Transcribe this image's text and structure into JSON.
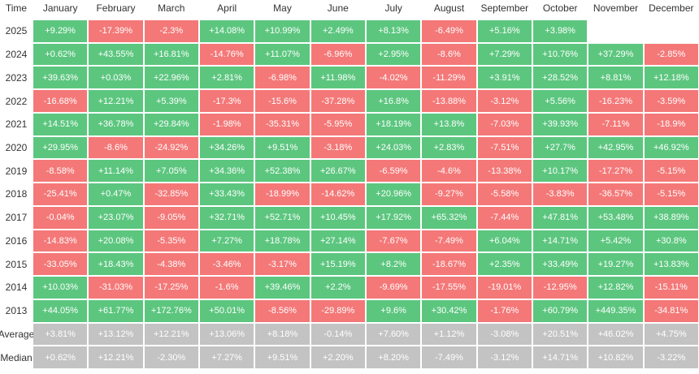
{
  "table": {
    "header": [
      "Time",
      "January",
      "February",
      "March",
      "April",
      "May",
      "June",
      "July",
      "August",
      "September",
      "October",
      "November",
      "December"
    ],
    "rows": [
      {
        "label": "2025",
        "cells": [
          "+9.29%",
          "-17.39%",
          "-2.3%",
          "+14.08%",
          "+10.99%",
          "+2.49%",
          "+8.13%",
          "-6.49%",
          "+5.16%",
          "+3.98%"
        ]
      },
      {
        "label": "2024",
        "cells": [
          "+0.62%",
          "+43.55%",
          "+16.81%",
          "-14.76%",
          "+11.07%",
          "-6.96%",
          "+2.95%",
          "-8.6%",
          "+7.29%",
          "+10.76%",
          "+37.29%",
          "-2.85%"
        ]
      },
      {
        "label": "2023",
        "cells": [
          "+39.63%",
          "+0.03%",
          "+22.96%",
          "+2.81%",
          "-6.98%",
          "+11.98%",
          "-4.02%",
          "-11.29%",
          "+3.91%",
          "+28.52%",
          "+8.81%",
          "+12.18%"
        ]
      },
      {
        "label": "2022",
        "cells": [
          "-16.68%",
          "+12.21%",
          "+5.39%",
          "-17.3%",
          "-15.6%",
          "-37.28%",
          "+16.8%",
          "-13.88%",
          "-3.12%",
          "+5.56%",
          "-16.23%",
          "-3.59%"
        ]
      },
      {
        "label": "2021",
        "cells": [
          "+14.51%",
          "+36.78%",
          "+29.84%",
          "-1.98%",
          "-35.31%",
          "-5.95%",
          "+18.19%",
          "+13.8%",
          "-7.03%",
          "+39.93%",
          "-7.11%",
          "-18.9%"
        ]
      },
      {
        "label": "2020",
        "cells": [
          "+29.95%",
          "-8.6%",
          "-24.92%",
          "+34.26%",
          "+9.51%",
          "-3.18%",
          "+24.03%",
          "+2.83%",
          "-7.51%",
          "+27.7%",
          "+42.95%",
          "+46.92%"
        ]
      },
      {
        "label": "2019",
        "cells": [
          "-8.58%",
          "+11.14%",
          "+7.05%",
          "+34.36%",
          "+52.38%",
          "+26.67%",
          "-6.59%",
          "-4.6%",
          "-13.38%",
          "+10.17%",
          "-17.27%",
          "-5.15%"
        ]
      },
      {
        "label": "2018",
        "cells": [
          "-25.41%",
          "+0.47%",
          "-32.85%",
          "+33.43%",
          "-18.99%",
          "-14.62%",
          "+20.96%",
          "-9.27%",
          "-5.58%",
          "-3.83%",
          "-36.57%",
          "-5.15%"
        ]
      },
      {
        "label": "2017",
        "cells": [
          "-0.04%",
          "+23.07%",
          "-9.05%",
          "+32.71%",
          "+52.71%",
          "+10.45%",
          "+17.92%",
          "+65.32%",
          "-7.44%",
          "+47.81%",
          "+53.48%",
          "+38.89%"
        ]
      },
      {
        "label": "2016",
        "cells": [
          "-14.83%",
          "+20.08%",
          "-5.35%",
          "+7.27%",
          "+18.78%",
          "+27.14%",
          "-7.67%",
          "-7.49%",
          "+6.04%",
          "+14.71%",
          "+5.42%",
          "+30.8%"
        ]
      },
      {
        "label": "2015",
        "cells": [
          "-33.05%",
          "+18.43%",
          "-4.38%",
          "-3.46%",
          "-3.17%",
          "+15.19%",
          "+8.2%",
          "-18.67%",
          "+2.35%",
          "+33.49%",
          "+19.27%",
          "+13.83%"
        ]
      },
      {
        "label": "2014",
        "cells": [
          "+10.03%",
          "-31.03%",
          "-17.25%",
          "-1.6%",
          "+39.46%",
          "+2.2%",
          "-9.69%",
          "-17.55%",
          "-19.01%",
          "-12.95%",
          "+12.82%",
          "-15.11%"
        ]
      },
      {
        "label": "2013",
        "cells": [
          "+44.05%",
          "+61.77%",
          "+172.76%",
          "+50.01%",
          "-8.56%",
          "-29.89%",
          "+9.6%",
          "+30.42%",
          "-1.76%",
          "+60.79%",
          "+449.35%",
          "-34.81%"
        ]
      }
    ],
    "summary_rows": [
      {
        "label": "Average",
        "cells": [
          "+3.81%",
          "+13.12%",
          "+12.21%",
          "+13.06%",
          "+8.18%",
          "-0.14%",
          "+7.60%",
          "+1.12%",
          "-3.08%",
          "+20.51%",
          "+46.02%",
          "+4.75%"
        ]
      },
      {
        "label": "Median",
        "cells": [
          "+0.62%",
          "+12.21%",
          "-2.30%",
          "+7.27%",
          "+9.51%",
          "+2.20%",
          "+8.20%",
          "-7.49%",
          "-3.12%",
          "+14.71%",
          "+10.82%",
          "-3.22%"
        ]
      }
    ],
    "colors": {
      "positive": "#5cc67f",
      "negative": "#f47878",
      "summary": "#c3c3c3"
    }
  }
}
